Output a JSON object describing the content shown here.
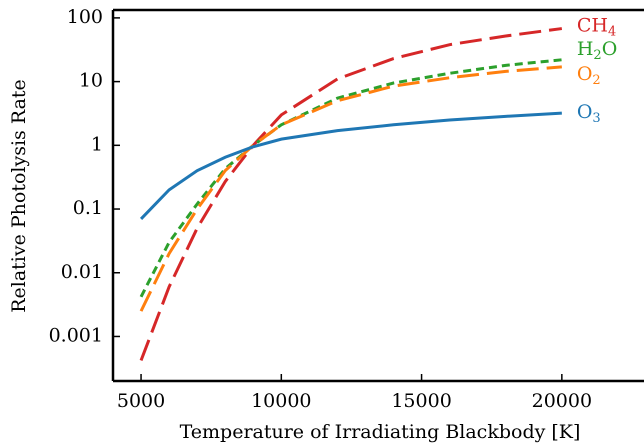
{
  "chart_data": {
    "type": "line",
    "xlabel": "Temperature of Irradiating Blackbody [K]",
    "ylabel": "Relative Photolysis Rate",
    "x": [
      5000,
      6000,
      7000,
      8000,
      9000,
      10000,
      12000,
      14000,
      16000,
      18000,
      20000
    ],
    "series": [
      {
        "name": "CH4",
        "color": "#d62728",
        "dash": "long",
        "values": [
          0.00042,
          0.006,
          0.05,
          0.27,
          1.0,
          3.0,
          11,
          23,
          38,
          52,
          68
        ]
      },
      {
        "name": "H2O",
        "color": "#2ca02c",
        "dash": "short",
        "values": [
          0.0042,
          0.03,
          0.12,
          0.43,
          1.0,
          2.1,
          5.5,
          9.5,
          13.5,
          18,
          22
        ]
      },
      {
        "name": "O2",
        "color": "#ff7f0e",
        "dash": "long",
        "values": [
          0.0025,
          0.02,
          0.1,
          0.4,
          1.0,
          2.1,
          5,
          8.5,
          11.5,
          14.5,
          17
        ]
      },
      {
        "name": "O3",
        "color": "#1f77b4",
        "dash": "solid",
        "values": [
          0.07,
          0.2,
          0.4,
          0.65,
          0.95,
          1.25,
          1.7,
          2.1,
          2.5,
          2.85,
          3.2
        ]
      }
    ],
    "xlim": [
      4000,
      23000
    ],
    "xticks": [
      5000,
      10000,
      15000,
      20000
    ],
    "ylog": true,
    "ylim": [
      0.0002,
      133
    ],
    "yticks": [
      0.001,
      0.01,
      0.1,
      1,
      10,
      100
    ]
  }
}
